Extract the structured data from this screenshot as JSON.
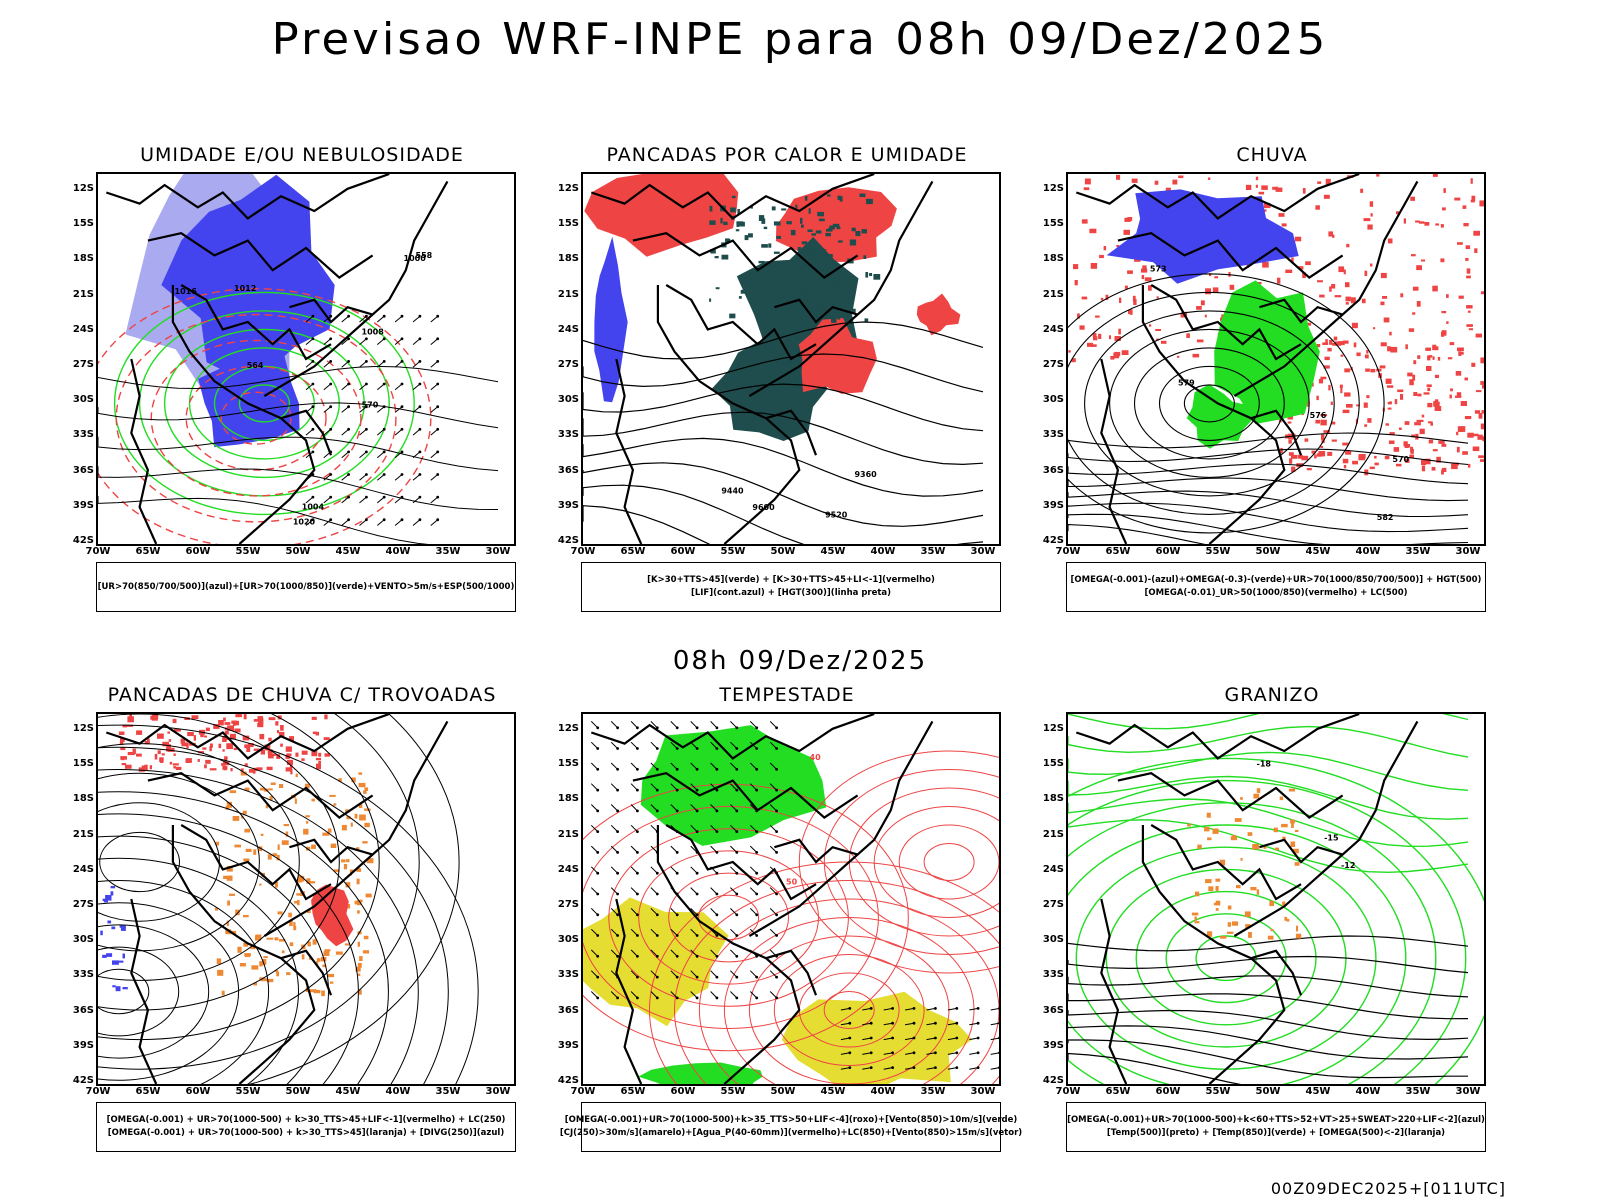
{
  "header": {
    "title": "Previsao WRF-INPE  para 08h 09/Dez/2025",
    "subtitle": "08h 09/Dez/2025",
    "footer": "00Z09DEC2025+[011UTC]"
  },
  "axes": {
    "lat_labels": [
      "12S",
      "15S",
      "18S",
      "21S",
      "24S",
      "27S",
      "30S",
      "33S",
      "36S",
      "39S",
      "42S"
    ],
    "lon_labels": [
      "70W",
      "65W",
      "60W",
      "55W",
      "50W",
      "45W",
      "40W",
      "35W",
      "30W"
    ]
  },
  "colors": {
    "blue": "#4444ee",
    "light_blue": "#aaaaf0",
    "green": "#22dd22",
    "red": "#ee4444",
    "dark_teal": "#1f4d4d",
    "orange": "#ee8833",
    "yellow": "#e6dd33",
    "black": "#000000"
  },
  "panels": [
    {
      "id": "umidade",
      "title": "UMIDADE E/OU NEBULOSIDADE",
      "legend": [
        "[UR>70(850/700/500)](azul)+[UR>70(1000/850)](verde)+VENTO>5m/s+ESP(500/1000)"
      ],
      "contour_labels": [
        "1016",
        "1012",
        "1008",
        "1004",
        "1000",
        "1020",
        "570",
        "564",
        "558"
      ]
    },
    {
      "id": "pancadas-calor",
      "title": "PANCADAS POR CALOR E UMIDADE",
      "legend": [
        "[K>30+TTS>45](verde) + [K>30+TTS>45+LI<-1](vermelho)",
        "[LIF](cont.azul) + [HGT(300)](linha preta)"
      ],
      "contour_labels": [
        "9600",
        "9520",
        "9440",
        "9360"
      ]
    },
    {
      "id": "chuva",
      "title": "CHUVA",
      "legend": [
        "[OMEGA(-0.001)-(azul)+OMEGA(-0.3)-(verde)+UR>70(1000/850/700/500)] + HGT(500)",
        "[OMEGA(-0.01)_UR>50(1000/850)(vermelho) + LC(500)"
      ],
      "contour_labels": [
        "582",
        "579",
        "576",
        "573",
        "570"
      ]
    },
    {
      "id": "trovoadas",
      "title": "PANCADAS DE CHUVA C/ TROVOADAS",
      "legend": [
        "[OMEGA(-0.001) + UR>70(1000-500) + k>30_TTS>45+LIF<-1](vermelho) + LC(250)",
        "[OMEGA(-0.001) + UR>70(1000-500) + k>30_TTS>45](laranja) + [DIVG(250)](azul)"
      ],
      "contour_labels": []
    },
    {
      "id": "tempestade",
      "title": "TEMPESTADE",
      "legend": [
        "[OMEGA(-0.001)+UR>70(1000-500)+k>35_TTS>50+LIF<-4](roxo)+[Vento(850)>10m/s](verde)",
        "[CJ(250)>30m/s](amarelo)+[Agua_P(40-60mm)](vermelho)+LC(850)+[Vento(850)>15m/s](vetor)"
      ],
      "contour_labels": [
        "40",
        "50"
      ]
    },
    {
      "id": "granizo",
      "title": "GRANIZO",
      "legend": [
        "[OMEGA(-0.001)+UR>70(1000-500)+k<60+TTS>52+VT>25+SWEAT>220+LIF<-2](azul)",
        "[Temp(500)](preto) + [Temp(850)](verde) + [OMEGA(500)<-2](laranja)"
      ],
      "contour_labels": [
        "-12",
        "-15",
        "-18"
      ]
    }
  ]
}
